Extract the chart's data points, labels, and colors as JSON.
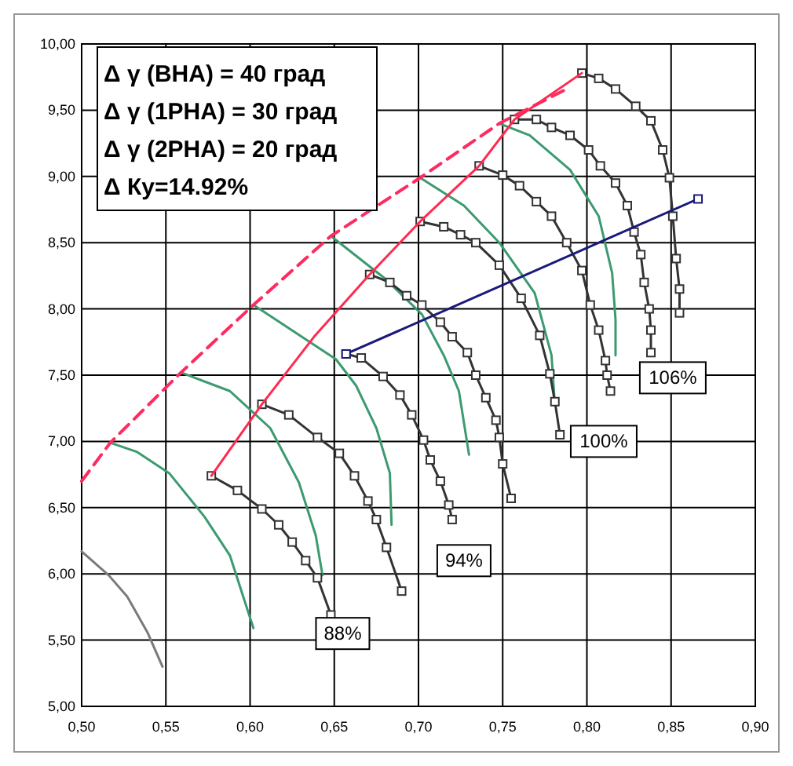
{
  "chart_data": {
    "type": "line",
    "xlim": [
      0.5,
      0.9
    ],
    "ylim": [
      5,
      10
    ],
    "xticks": [
      {
        "value": 0.5,
        "label": "0,50"
      },
      {
        "value": 0.55,
        "label": "0,55"
      },
      {
        "value": 0.6,
        "label": "0,60"
      },
      {
        "value": 0.65,
        "label": "0,65"
      },
      {
        "value": 0.7,
        "label": "0,70"
      },
      {
        "value": 0.75,
        "label": "0,75"
      },
      {
        "value": 0.8,
        "label": "0,80"
      },
      {
        "value": 0.85,
        "label": "0,85"
      },
      {
        "value": 0.9,
        "label": "0,90"
      }
    ],
    "yticks": [
      {
        "value": 5,
        "label": "5,00"
      },
      {
        "value": 5.5,
        "label": "5,50"
      },
      {
        "value": 6,
        "label": "6,00"
      },
      {
        "value": 6.5,
        "label": "6,50"
      },
      {
        "value": 7,
        "label": "7,00"
      },
      {
        "value": 7.5,
        "label": "7,50"
      },
      {
        "value": 8,
        "label": "8,00"
      },
      {
        "value": 8.5,
        "label": "8,50"
      },
      {
        "value": 9,
        "label": "9,00"
      },
      {
        "value": 9.5,
        "label": "9,50"
      },
      {
        "value": 10,
        "label": "10,00"
      }
    ],
    "grid": true,
    "series": [
      {
        "color": "#7a7a7a",
        "marker": "none",
        "x": [
          0.5,
          0.516,
          0.527,
          0.539,
          0.548
        ],
        "values": [
          6.17,
          5.99,
          5.83,
          5.56,
          5.3
        ]
      },
      {
        "color": "#3c9a70",
        "marker": "none",
        "x": [
          0.517,
          0.533,
          0.552,
          0.573,
          0.588,
          0.602
        ],
        "values": [
          6.99,
          6.92,
          6.76,
          6.43,
          6.14,
          5.59
        ]
      },
      {
        "color": "#3c9a70",
        "marker": "none",
        "x": [
          0.559,
          0.588,
          0.612,
          0.629,
          0.639,
          0.643
        ],
        "values": [
          7.52,
          7.38,
          7.1,
          6.69,
          6.29,
          5.99
        ]
      },
      {
        "color": "#3c9a70",
        "marker": "none",
        "x": [
          0.602,
          0.651,
          0.663,
          0.675,
          0.683,
          0.684
        ],
        "values": [
          8.03,
          7.62,
          7.42,
          7.1,
          6.76,
          6.37
        ]
      },
      {
        "color": "#3c9a70",
        "marker": "none",
        "x": [
          0.648,
          0.68,
          0.702,
          0.715,
          0.724,
          0.73
        ],
        "values": [
          8.55,
          8.23,
          7.96,
          7.65,
          7.38,
          6.9
        ]
      },
      {
        "color": "#3c9a70",
        "marker": "none",
        "x": [
          0.701,
          0.727,
          0.748,
          0.769,
          0.779,
          0.781
        ],
        "values": [
          8.99,
          8.78,
          8.5,
          8.12,
          7.65,
          7.27
        ]
      },
      {
        "color": "#3c9a70",
        "marker": "none",
        "x": [
          0.748,
          0.766,
          0.79,
          0.807,
          0.815,
          0.817,
          0.817
        ],
        "values": [
          9.4,
          9.31,
          9.05,
          8.7,
          8.27,
          7.92,
          7.65
        ]
      },
      {
        "color": "#333333",
        "marker": "square",
        "x": [
          0.577,
          0.5925,
          0.607,
          0.617,
          0.625,
          0.633,
          0.64,
          0.648
        ],
        "values": [
          6.74,
          6.63,
          6.49,
          6.37,
          6.24,
          6.1,
          5.97,
          5.69
        ]
      },
      {
        "color": "#333333",
        "marker": "square",
        "x": [
          0.607,
          0.623,
          0.64,
          0.653,
          0.662,
          0.67,
          0.675,
          0.681,
          0.69
        ],
        "values": [
          7.28,
          7.2,
          7.03,
          6.91,
          6.74,
          6.55,
          6.41,
          6.2,
          5.87
        ]
      },
      {
        "color": "#333333",
        "marker": "square",
        "x": [
          0.657,
          0.666,
          0.679,
          0.689,
          0.696,
          0.703,
          0.707,
          0.713,
          0.718,
          0.72
        ],
        "values": [
          7.66,
          7.63,
          7.49,
          7.35,
          7.2,
          7.01,
          6.86,
          6.7,
          6.52,
          6.41
        ]
      },
      {
        "color": "#333333",
        "marker": "square",
        "x": [
          0.671,
          0.683,
          0.693,
          0.702,
          0.713,
          0.72,
          0.729,
          0.734,
          0.74,
          0.746,
          0.748,
          0.75,
          0.755
        ],
        "values": [
          8.26,
          8.2,
          8.1,
          8.03,
          7.9,
          7.79,
          7.67,
          7.5,
          7.33,
          7.16,
          7.03,
          6.83,
          6.57
        ]
      },
      {
        "color": "#333333",
        "marker": "square",
        "x": [
          0.701,
          0.715,
          0.725,
          0.734,
          0.748,
          0.761,
          0.772,
          0.778,
          0.781,
          0.784
        ],
        "values": [
          8.66,
          8.62,
          8.56,
          8.5,
          8.33,
          8.08,
          7.8,
          7.51,
          7.3,
          7.05
        ]
      },
      {
        "color": "#333333",
        "marker": "square",
        "x": [
          0.736,
          0.75,
          0.76,
          0.77,
          0.779,
          0.788,
          0.797,
          0.802,
          0.807,
          0.811,
          0.812,
          0.814
        ],
        "values": [
          9.08,
          9.01,
          8.93,
          8.81,
          8.7,
          8.5,
          8.29,
          8.03,
          7.84,
          7.61,
          7.5,
          7.38
        ]
      },
      {
        "color": "#333333",
        "marker": "square",
        "x": [
          0.757,
          0.77,
          0.779,
          0.79,
          0.801,
          0.808,
          0.817,
          0.824,
          0.828,
          0.832,
          0.834,
          0.837,
          0.838,
          0.838
        ],
        "values": [
          9.43,
          9.43,
          9.37,
          9.31,
          9.2,
          9.08,
          8.95,
          8.78,
          8.58,
          8.41,
          8.2,
          8.0,
          7.84,
          7.67
        ]
      },
      {
        "color": "#333333",
        "marker": "square",
        "x": [
          0.797,
          0.807,
          0.817,
          0.829,
          0.838,
          0.845,
          0.849,
          0.851,
          0.853,
          0.855,
          0.855
        ],
        "values": [
          9.78,
          9.74,
          9.66,
          9.53,
          9.42,
          9.2,
          8.99,
          8.7,
          8.38,
          8.15,
          7.97
        ]
      },
      {
        "color": "#ff2a60",
        "marker": "none",
        "line_style": "dashed",
        "x": [
          0.5,
          0.517,
          0.559,
          0.602,
          0.648,
          0.701,
          0.748,
          0.788
        ],
        "values": [
          6.7,
          6.99,
          7.52,
          8.03,
          8.55,
          8.99,
          9.4,
          9.66
        ]
      },
      {
        "color": "#ff2a50",
        "marker": "none",
        "x": [
          0.577,
          0.607,
          0.638,
          0.671,
          0.701,
          0.736,
          0.757,
          0.797
        ],
        "values": [
          6.74,
          7.28,
          7.79,
          8.26,
          8.66,
          9.08,
          9.43,
          9.78
        ]
      },
      {
        "color": "#1a1a7a",
        "marker": "square",
        "x": [
          0.657,
          0.866
        ],
        "values": [
          7.66,
          8.83
        ]
      }
    ],
    "annotations": [
      "Δ γ (ВНА) = 40 град",
      "Δ γ (1РНА) = 30 град",
      "Δ γ (2РНА) = 20 град",
      "Δ Ку=14.92%",
      {
        "text": "88%",
        "x": 0.655,
        "y": 5.55
      },
      {
        "text": "94%",
        "x": 0.727,
        "y": 6.1
      },
      {
        "text": "100%",
        "x": 0.81,
        "y": 7.0
      },
      {
        "text": "106%",
        "x": 0.851,
        "y": 7.48
      }
    ]
  }
}
